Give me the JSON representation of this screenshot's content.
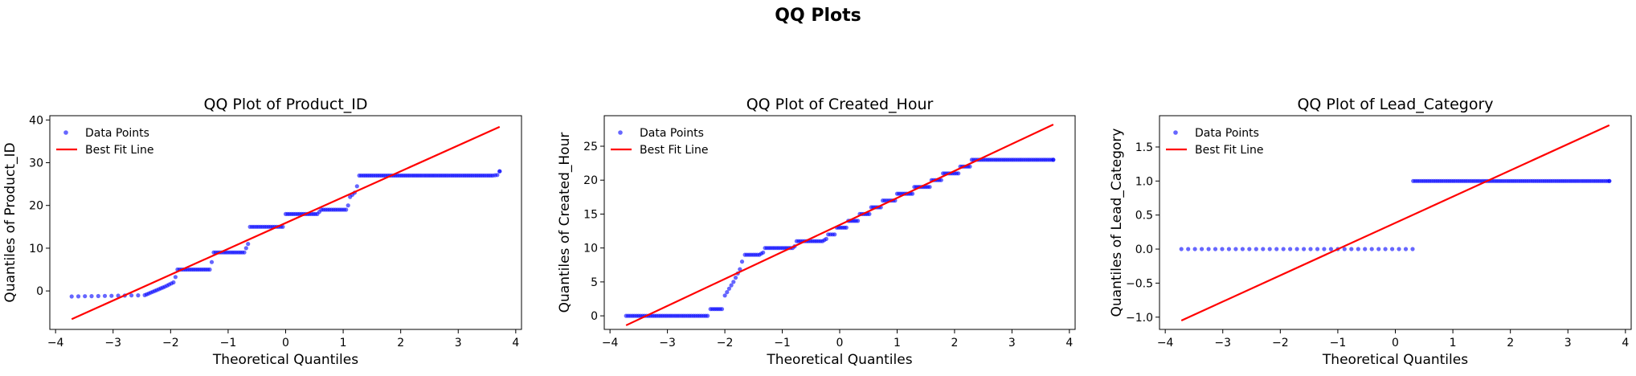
{
  "figure": {
    "title": "QQ Plots"
  },
  "chart_data": [
    {
      "type": "scatter",
      "title": "QQ Plot of Product_ID",
      "xlabel": "Theoretical Quantiles",
      "ylabel": "Quantiles of Product_ID",
      "xlim": [
        -4.1,
        4.1
      ],
      "ylim": [
        -9,
        41
      ],
      "xticks": [
        -4,
        -3,
        -2,
        -1,
        0,
        1,
        2,
        3,
        4
      ],
      "yticks": [
        0,
        10,
        20,
        30,
        40
      ],
      "legend": {
        "placement": "top-left",
        "entries": [
          "Data Points",
          "Best Fit Line"
        ]
      },
      "fit_line": {
        "x": [
          -3.72,
          3.72
        ],
        "y": [
          -6.6,
          38.4
        ]
      },
      "steps": [
        [
          -3.72,
          -1.3,
          -1.0
        ],
        [
          -2.45,
          -1.0,
          1.0
        ],
        [
          -2.1,
          1.0,
          2.0
        ],
        [
          -1.95,
          2.0,
          4.5
        ],
        [
          -1.88,
          5.0,
          5.0
        ],
        [
          -1.32,
          5.0,
          8.5
        ],
        [
          -1.25,
          9.0,
          9.0
        ],
        [
          -0.72,
          9.0,
          12.0
        ],
        [
          -0.62,
          15.0,
          15.0
        ],
        [
          -0.05,
          15.0,
          17.0
        ],
        [
          0.0,
          18.0,
          18.0
        ],
        [
          0.55,
          18.0,
          19.0
        ],
        [
          0.62,
          19.0,
          19.0
        ],
        [
          1.05,
          19.0,
          21.0
        ],
        [
          1.12,
          22.0,
          23.0
        ],
        [
          1.2,
          23.0,
          26.0
        ],
        [
          1.28,
          27.0,
          27.0
        ],
        [
          3.6,
          27.0,
          27.2
        ],
        [
          3.72,
          28.0,
          28.0
        ]
      ]
    },
    {
      "type": "scatter",
      "title": "QQ Plot of Created_Hour",
      "xlabel": "Theoretical Quantiles",
      "ylabel": "Quantiles of Created_Hour",
      "xlim": [
        -4.1,
        4.1
      ],
      "ylim": [
        -2,
        29.5
      ],
      "xticks": [
        -4,
        -3,
        -2,
        -1,
        0,
        1,
        2,
        3,
        4
      ],
      "yticks": [
        0,
        5,
        10,
        15,
        20,
        25
      ],
      "legend": {
        "placement": "top-left",
        "entries": [
          "Data Points",
          "Best Fit Line"
        ]
      },
      "fit_line": {
        "x": [
          -3.72,
          3.72
        ],
        "y": [
          -1.4,
          28.2
        ]
      },
      "steps": [
        [
          -3.72,
          0.0,
          0.0
        ],
        [
          -3.4,
          0.0,
          0.0
        ],
        [
          -2.3,
          0.0,
          0.0
        ],
        [
          -2.25,
          1.0,
          1.0
        ],
        [
          -2.05,
          1.0,
          2.0
        ],
        [
          -2.0,
          3.0,
          5.0
        ],
        [
          -1.85,
          5.0,
          7.5
        ],
        [
          -1.7,
          8.0,
          8.0
        ],
        [
          -1.65,
          9.0,
          9.0
        ],
        [
          -1.4,
          9.0,
          9.5
        ],
        [
          -1.3,
          10.0,
          10.0
        ],
        [
          -0.82,
          10.0,
          10.5
        ],
        [
          -0.75,
          11.0,
          11.0
        ],
        [
          -0.3,
          11.0,
          11.5
        ],
        [
          -0.2,
          12.0,
          12.0
        ],
        [
          -0.05,
          13.0,
          13.0
        ],
        [
          0.15,
          14.0,
          14.0
        ],
        [
          0.35,
          15.0,
          15.0
        ],
        [
          0.55,
          16.0,
          16.0
        ],
        [
          0.75,
          17.0,
          17.0
        ],
        [
          1.0,
          18.0,
          18.0
        ],
        [
          1.3,
          19.0,
          19.0
        ],
        [
          1.6,
          20.0,
          20.0
        ],
        [
          1.8,
          21.0,
          21.0
        ],
        [
          2.1,
          22.0,
          22.0
        ],
        [
          2.3,
          23.0,
          23.0
        ],
        [
          3.72,
          23.0,
          23.0
        ]
      ]
    },
    {
      "type": "scatter",
      "title": "QQ Plot of Lead_Category",
      "xlabel": "Theoretical Quantiles",
      "ylabel": "Quantiles of Lead_Category",
      "xlim": [
        -4.1,
        4.1
      ],
      "ylim": [
        -1.18,
        1.96
      ],
      "xticks": [
        -4,
        -3,
        -2,
        -1,
        0,
        1,
        2,
        3,
        4
      ],
      "yticks": [
        -1.0,
        -0.5,
        0.0,
        0.5,
        1.0,
        1.5
      ],
      "legend": {
        "placement": "top-left",
        "entries": [
          "Data Points",
          "Best Fit Line"
        ]
      },
      "fit_line": {
        "x": [
          -3.72,
          3.72
        ],
        "y": [
          -1.05,
          1.82
        ]
      },
      "steps": [
        [
          -3.72,
          0.0,
          0.0
        ],
        [
          0.3,
          0.0,
          0.0
        ],
        [
          0.31,
          1.0,
          1.0
        ],
        [
          3.72,
          1.0,
          1.0
        ]
      ]
    }
  ],
  "colors": {
    "points": "#0000ff",
    "line": "#ff0000",
    "axis": "#000000"
  }
}
